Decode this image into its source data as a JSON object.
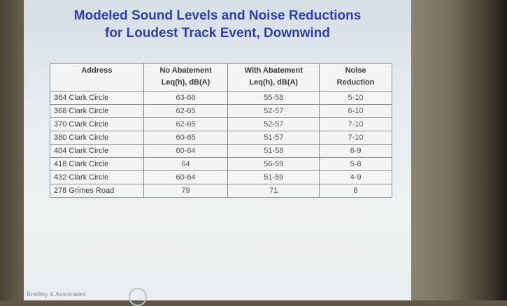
{
  "slide": {
    "title_line1": "Modeled Sound Levels and Noise Reductions",
    "title_line2": "for Loudest Track Event, Downwind"
  },
  "table": {
    "headers": [
      [
        "Address"
      ],
      [
        "No Abatement",
        "Leq(h), dB(A)"
      ],
      [
        "With Abatement",
        "Leq(h), dB(A)"
      ],
      [
        "Noise",
        "Reduction"
      ]
    ],
    "rows": [
      [
        "364 Clark Circle",
        "63-66",
        "55-58",
        "5-10"
      ],
      [
        "368 Clark Circle",
        "62-65",
        "52-57",
        "6-10"
      ],
      [
        "370 Clark Circle",
        "62-65",
        "52-57",
        "7-10"
      ],
      [
        "380 Clark Circle",
        "60-65",
        "51-57",
        "7-10"
      ],
      [
        "404 Clark Circle",
        "60-64",
        "51-58",
        "6-9"
      ],
      [
        "418 Clark Circle",
        "64",
        "56-59",
        "5-8"
      ],
      [
        "432 Clark Circle",
        "60-64",
        "51-59",
        "4-9"
      ],
      [
        "278 Grimes Road",
        "79",
        "71",
        "8"
      ]
    ]
  },
  "footer": {
    "logo_text": "Bradley & Associates"
  }
}
